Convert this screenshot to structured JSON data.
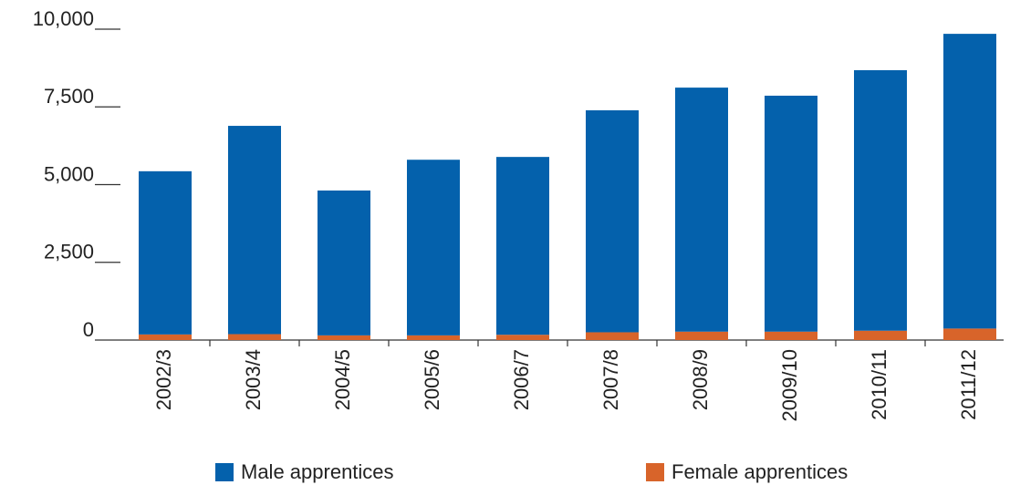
{
  "chart_data": {
    "type": "stacked_bar",
    "categories": [
      "2002/3",
      "2003/4",
      "2004/5",
      "2005/6",
      "2006/7",
      "2007/8",
      "2008/9",
      "2009/10",
      "2010/11",
      "2011/12"
    ],
    "series": [
      {
        "name": "Female apprentices",
        "color": "#d8642a",
        "values": [
          180,
          190,
          150,
          150,
          170,
          250,
          270,
          270,
          300,
          370
        ]
      },
      {
        "name": "Male apprentices",
        "color": "#0461ac",
        "values": [
          5250,
          6700,
          4660,
          5650,
          5720,
          7140,
          7850,
          7590,
          8380,
          9480
        ]
      }
    ],
    "ylim": [
      0,
      10000
    ],
    "yticks": [
      0,
      {
        "value": 2500,
        "label": "2,500"
      },
      {
        "value": 5000,
        "label": "5,000"
      },
      {
        "value": 7500,
        "label": "7,500"
      },
      {
        "value": 10000,
        "label": "10,000"
      }
    ],
    "legend": "bottom"
  }
}
